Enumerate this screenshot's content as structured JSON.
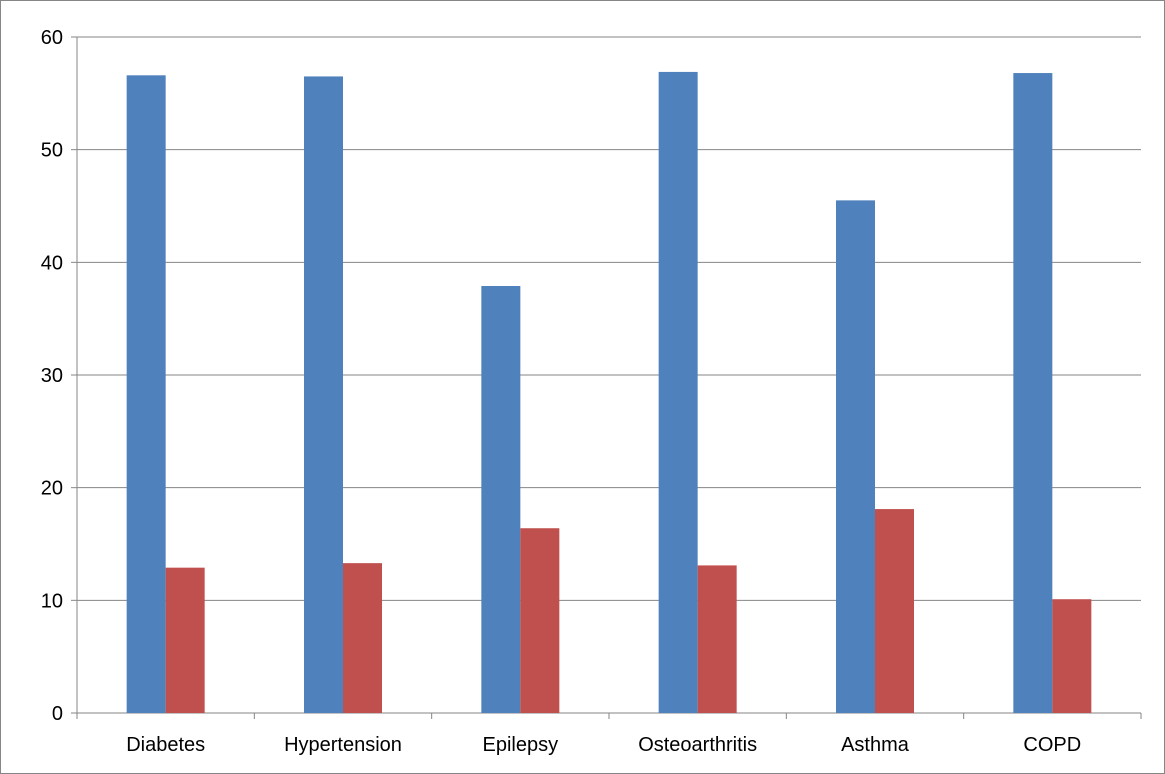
{
  "chart_data": {
    "type": "bar",
    "title": "",
    "xlabel": "",
    "ylabel": "",
    "categories": [
      "Diabetes",
      "Hypertension",
      "Epilepsy",
      "Osteoarthritis",
      "Asthma",
      "COPD"
    ],
    "series": [
      {
        "color": "#4F81BD",
        "values": [
          56.6,
          56.5,
          37.9,
          56.9,
          45.5,
          56.8
        ]
      },
      {
        "color": "#C0504D",
        "values": [
          12.9,
          13.3,
          16.4,
          13.1,
          18.1,
          10.1
        ]
      }
    ],
    "ylim": [
      0,
      60
    ],
    "yticks": [
      "0",
      "10",
      "20",
      "30",
      "40",
      "50",
      "60"
    ],
    "grid": true,
    "legend": "none"
  }
}
